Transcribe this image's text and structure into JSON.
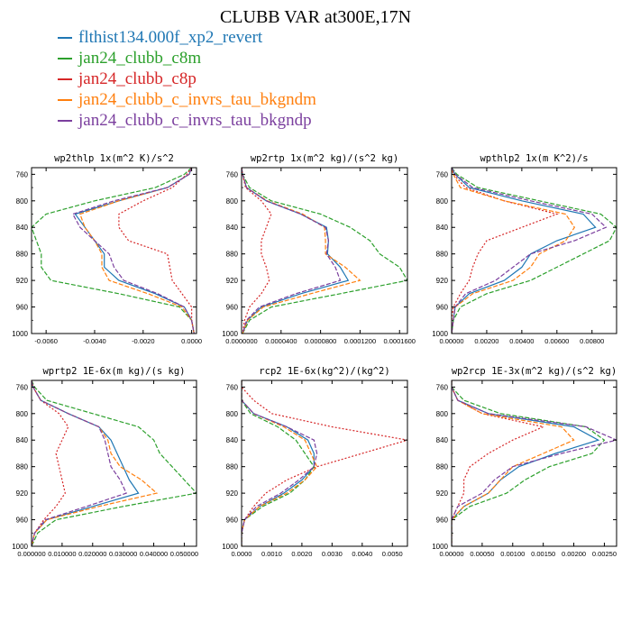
{
  "figure": {
    "title": "CLUBB VAR at300E,17N"
  },
  "legend": [
    {
      "label": "flthist134.000f_xp2_revert",
      "color": "#1f77b4"
    },
    {
      "label": "jan24_clubb_c8m",
      "color": "#2ca02c"
    },
    {
      "label": "jan24_clubb_c8p",
      "color": "#d62728"
    },
    {
      "label": "jan24_clubb_c_invrs_tau_bkgndm",
      "color": "#ff7f0e"
    },
    {
      "label": "jan24_clubb_c_invrs_tau_bkgndp",
      "color": "#7b3f9e"
    }
  ],
  "chart_data": [
    {
      "type": "line",
      "title": "wp2thlp  1x(m^2 K)/s^2",
      "y": [
        750,
        760,
        780,
        800,
        820,
        840,
        860,
        880,
        900,
        920,
        940,
        960,
        980,
        1000
      ],
      "ylim": [
        1000,
        750
      ],
      "yticks": [
        "760",
        "800",
        "840",
        "880",
        "920",
        "960",
        "1000"
      ],
      "yticks_values": [
        760,
        800,
        840,
        880,
        920,
        960,
        1000
      ],
      "xlim": [
        -0.0066,
        0.0002
      ],
      "xticks": [
        "-0.0060",
        "-0.0040",
        "-0.0020",
        "0.0000"
      ],
      "xticks_values": [
        -0.006,
        -0.004,
        -0.002,
        0.0
      ],
      "series": [
        {
          "color": "#1f77b4",
          "values": [
            0.0,
            -0.0001,
            -0.001,
            -0.003,
            -0.0048,
            -0.0044,
            -0.004,
            -0.0036,
            -0.0036,
            -0.003,
            -0.0015,
            -0.0003,
            0.0,
            0.0001
          ]
        },
        {
          "color": "#2ca02c",
          "values": [
            0.0,
            -0.0003,
            -0.0015,
            -0.004,
            -0.006,
            -0.0066,
            -0.0064,
            -0.0062,
            -0.0062,
            -0.0058,
            -0.003,
            -0.0005,
            0.0,
            0.0001
          ]
        },
        {
          "color": "#d62728",
          "values": [
            0.0,
            -0.0002,
            -0.0008,
            -0.002,
            -0.003,
            -0.003,
            -0.0026,
            -0.001,
            -0.0009,
            -0.0008,
            -0.0004,
            0.0,
            0.0,
            0.0001
          ]
        },
        {
          "color": "#ff7f0e",
          "values": [
            0.0,
            -0.0001,
            -0.001,
            -0.003,
            -0.0046,
            -0.0044,
            -0.004,
            -0.0037,
            -0.0037,
            -0.0034,
            -0.0018,
            -0.0004,
            0.0,
            0.0001
          ]
        },
        {
          "color": "#7b3f9e",
          "values": [
            0.0,
            -0.0001,
            -0.001,
            -0.0032,
            -0.0049,
            -0.0046,
            -0.004,
            -0.0034,
            -0.0032,
            -0.0028,
            -0.0014,
            -0.0003,
            0.0,
            0.0001
          ]
        }
      ]
    },
    {
      "type": "line",
      "title": "wp2rtp   1x(m^2 kg)/(s^2 kg)",
      "y": [
        750,
        760,
        780,
        800,
        820,
        840,
        860,
        880,
        900,
        920,
        940,
        960,
        980,
        1000
      ],
      "ylim": [
        1000,
        750
      ],
      "yticks": [
        "760",
        "800",
        "840",
        "880",
        "920",
        "960",
        "1000"
      ],
      "yticks_values": [
        760,
        800,
        840,
        880,
        920,
        960,
        1000
      ],
      "xlim": [
        0,
        0.000168
      ],
      "xticks": [
        "0.0000000",
        "0.0000400",
        "0.0000800",
        "0.0001200",
        "0.0001600"
      ],
      "xticks_values": [
        0,
        4e-05,
        8e-05,
        0.00012,
        0.00016
      ],
      "series": [
        {
          "color": "#1f77b4",
          "values": [
            0.0,
            1e-06,
            5e-06,
            2.5e-05,
            6e-05,
            8.6e-05,
            8.8e-05,
            8.7e-05,
            0.0001,
            0.000108,
            6e-05,
            2e-05,
            6e-06,
            1e-06
          ]
        },
        {
          "color": "#2ca02c",
          "values": [
            0.0,
            1e-06,
            8e-06,
            3e-05,
            8e-05,
            0.00011,
            0.00013,
            0.00014,
            0.00016,
            0.000168,
            0.0001,
            3e-05,
            8e-06,
            1e-06
          ]
        },
        {
          "color": "#d62728",
          "values": [
            0.0,
            1e-06,
            4e-06,
            2e-05,
            3e-05,
            2.5e-05,
            2e-05,
            2e-05,
            2.5e-05,
            2.8e-05,
            2e-05,
            8e-06,
            3e-06,
            1e-06
          ]
        },
        {
          "color": "#ff7f0e",
          "values": [
            0.0,
            1e-06,
            5e-06,
            2.6e-05,
            6.2e-05,
            8.4e-05,
            8.5e-05,
            8.5e-05,
            0.000105,
            0.00012,
            7e-05,
            2.2e-05,
            6e-06,
            1e-06
          ]
        },
        {
          "color": "#7b3f9e",
          "values": [
            0.0,
            1e-06,
            5e-06,
            2.5e-05,
            6e-05,
            8.5e-05,
            8.8e-05,
            8.6e-05,
            9.5e-05,
            0.0001,
            5.5e-05,
            1.8e-05,
            5e-06,
            1e-06
          ]
        }
      ]
    },
    {
      "type": "line",
      "title": "wpthlp2  1x(m K^2)/s",
      "y": [
        750,
        760,
        780,
        800,
        820,
        840,
        860,
        880,
        900,
        920,
        940,
        960,
        980,
        1000
      ],
      "ylim": [
        1000,
        750
      ],
      "yticks": [
        "760",
        "800",
        "840",
        "880",
        "920",
        "960",
        "1000"
      ],
      "yticks_values": [
        760,
        800,
        840,
        880,
        920,
        960,
        1000
      ],
      "xlim": [
        0,
        0.0094
      ],
      "xticks": [
        "0.00000",
        "0.00200",
        "0.00400",
        "0.00600",
        "0.00800"
      ],
      "xticks_values": [
        0,
        0.002,
        0.004,
        0.006,
        0.008
      ],
      "series": [
        {
          "color": "#1f77b4",
          "values": [
            0.0,
            0.0002,
            0.001,
            0.004,
            0.0075,
            0.0082,
            0.006,
            0.0045,
            0.004,
            0.003,
            0.001,
            0.0002,
            0.0001,
            0.0
          ]
        },
        {
          "color": "#2ca02c",
          "values": [
            0.0,
            0.0003,
            0.0015,
            0.005,
            0.0085,
            0.0094,
            0.009,
            0.0075,
            0.006,
            0.0045,
            0.002,
            0.0005,
            0.0001,
            0.0
          ]
        },
        {
          "color": "#d62728",
          "values": [
            0.0,
            0.0001,
            0.0008,
            0.003,
            0.006,
            0.004,
            0.002,
            0.0015,
            0.0012,
            0.001,
            0.0005,
            0.0001,
            0.0,
            0.0
          ]
        },
        {
          "color": "#ff7f0e",
          "values": [
            0.0,
            0.0001,
            0.0005,
            0.003,
            0.0065,
            0.007,
            0.0065,
            0.005,
            0.0045,
            0.0035,
            0.0012,
            0.0002,
            0.0001,
            0.0
          ]
        },
        {
          "color": "#7b3f9e",
          "values": [
            0.0,
            0.0002,
            0.0012,
            0.0045,
            0.008,
            0.0088,
            0.007,
            0.0045,
            0.0035,
            0.0025,
            0.0008,
            0.0002,
            0.0001,
            0.0
          ]
        }
      ]
    },
    {
      "type": "line",
      "title": "wprtp2  1E-6x(m kg)/(s kg)",
      "y": [
        750,
        760,
        780,
        800,
        820,
        840,
        860,
        880,
        900,
        920,
        940,
        960,
        980,
        1000
      ],
      "ylim": [
        1000,
        750
      ],
      "yticks": [
        "760",
        "800",
        "840",
        "880",
        "920",
        "960",
        "1000"
      ],
      "yticks_values": [
        760,
        800,
        840,
        880,
        920,
        960,
        1000
      ],
      "xlim": [
        0,
        0.054
      ],
      "xticks": [
        "0.000000",
        "0.010000",
        "0.020000",
        "0.030000",
        "0.040000",
        "0.050000"
      ],
      "xticks_values": [
        0,
        0.01,
        0.02,
        0.03,
        0.04,
        0.05
      ],
      "series": [
        {
          "color": "#1f77b4",
          "values": [
            0.0,
            0.0005,
            0.003,
            0.012,
            0.022,
            0.026,
            0.028,
            0.03,
            0.032,
            0.035,
            0.02,
            0.005,
            0.001,
            0.0
          ]
        },
        {
          "color": "#2ca02c",
          "values": [
            0.0,
            0.001,
            0.005,
            0.02,
            0.035,
            0.04,
            0.042,
            0.046,
            0.05,
            0.054,
            0.03,
            0.008,
            0.002,
            0.0
          ]
        },
        {
          "color": "#d62728",
          "values": [
            0.0,
            0.0005,
            0.003,
            0.009,
            0.012,
            0.01,
            0.008,
            0.009,
            0.01,
            0.011,
            0.008,
            0.004,
            0.001,
            0.0
          ]
        },
        {
          "color": "#ff7f0e",
          "values": [
            0.0,
            0.0005,
            0.003,
            0.012,
            0.022,
            0.025,
            0.026,
            0.029,
            0.036,
            0.041,
            0.022,
            0.005,
            0.001,
            0.0
          ]
        },
        {
          "color": "#7b3f9e",
          "values": [
            0.0,
            0.0005,
            0.003,
            0.012,
            0.022,
            0.024,
            0.025,
            0.026,
            0.029,
            0.031,
            0.018,
            0.0045,
            0.001,
            0.0
          ]
        }
      ]
    },
    {
      "type": "line",
      "title": "rcp2  1E-6x(kg^2)/(kg^2)",
      "y": [
        750,
        760,
        780,
        800,
        820,
        840,
        860,
        880,
        900,
        920,
        940,
        960,
        980,
        1000
      ],
      "ylim": [
        1000,
        750
      ],
      "yticks": [
        "760",
        "800",
        "840",
        "880",
        "920",
        "960",
        "1000"
      ],
      "yticks_values": [
        760,
        800,
        840,
        880,
        920,
        960,
        1000
      ],
      "xlim": [
        0,
        0.0055
      ],
      "xticks": [
        "0.0000",
        "0.0010",
        "0.0020",
        "0.0030",
        "0.0040",
        "0.0050"
      ],
      "xticks_values": [
        0,
        0.001,
        0.002,
        0.003,
        0.004,
        0.005
      ],
      "series": [
        {
          "color": "#1f77b4",
          "values": [
            0.0,
            0.0,
            0.0,
            0.0004,
            0.0015,
            0.0022,
            0.0024,
            0.0024,
            0.002,
            0.0014,
            0.0006,
            0.0001,
            0.0,
            0.0
          ]
        },
        {
          "color": "#2ca02c",
          "values": [
            0.0,
            0.0,
            0.0,
            0.0003,
            0.0012,
            0.0018,
            0.0021,
            0.0024,
            0.0021,
            0.0016,
            0.0007,
            0.0001,
            0.0,
            0.0
          ]
        },
        {
          "color": "#d62728",
          "values": [
            0.0,
            0.0,
            0.0004,
            0.001,
            0.003,
            0.0055,
            0.004,
            0.0025,
            0.0015,
            0.0008,
            0.0004,
            0.0001,
            0.0,
            0.0
          ]
        },
        {
          "color": "#ff7f0e",
          "values": [
            0.0,
            0.0,
            0.0,
            0.0004,
            0.0014,
            0.0021,
            0.0023,
            0.0025,
            0.0021,
            0.0015,
            0.0006,
            0.0001,
            0.0,
            0.0
          ]
        },
        {
          "color": "#7b3f9e",
          "values": [
            0.0,
            0.0,
            0.0,
            0.0004,
            0.0015,
            0.0024,
            0.0025,
            0.0024,
            0.0019,
            0.0013,
            0.0005,
            0.0001,
            0.0,
            0.0
          ]
        }
      ]
    },
    {
      "type": "line",
      "title": "wp2rcp  1E-3x(m^2 kg)/(s^2 kg)",
      "y": [
        750,
        760,
        780,
        800,
        820,
        840,
        860,
        880,
        900,
        920,
        940,
        960,
        980,
        1000
      ],
      "ylim": [
        1000,
        750
      ],
      "yticks": [
        "760",
        "800",
        "840",
        "880",
        "920",
        "960",
        "1000"
      ],
      "yticks_values": [
        760,
        800,
        840,
        880,
        920,
        960,
        1000
      ],
      "xlim": [
        0,
        0.0027
      ],
      "xticks": [
        "0.00000",
        "0.00050",
        "0.00100",
        "0.00150",
        "0.00200",
        "0.00250"
      ],
      "xticks_values": [
        0,
        0.0005,
        0.001,
        0.0015,
        0.002,
        0.0025
      ],
      "series": [
        {
          "color": "#1f77b4",
          "values": [
            0.0,
            0.0,
            0.0001,
            0.0006,
            0.002,
            0.0024,
            0.0017,
            0.0011,
            0.0008,
            0.0006,
            0.0002,
            0.0,
            0.0,
            0.0
          ]
        },
        {
          "color": "#2ca02c",
          "values": [
            0.0,
            0.0,
            0.0002,
            0.0008,
            0.0022,
            0.0025,
            0.0023,
            0.0016,
            0.0012,
            0.0009,
            0.0003,
            0.0,
            0.0,
            0.0
          ]
        },
        {
          "color": "#d62728",
          "values": [
            0.0,
            0.0,
            0.0001,
            0.0005,
            0.0015,
            0.001,
            0.0006,
            0.0003,
            0.0002,
            0.0002,
            0.0001,
            0.0,
            0.0,
            0.0
          ]
        },
        {
          "color": "#ff7f0e",
          "values": [
            0.0,
            0.0,
            0.0001,
            0.0005,
            0.0018,
            0.002,
            0.0015,
            0.001,
            0.0008,
            0.0006,
            0.0002,
            0.0,
            0.0,
            0.0
          ]
        },
        {
          "color": "#7b3f9e",
          "values": [
            0.0,
            0.0,
            0.0001,
            0.0006,
            0.0022,
            0.0027,
            0.0018,
            0.001,
            0.0007,
            0.0005,
            0.0001,
            0.0,
            0.0,
            0.0
          ]
        }
      ]
    }
  ]
}
